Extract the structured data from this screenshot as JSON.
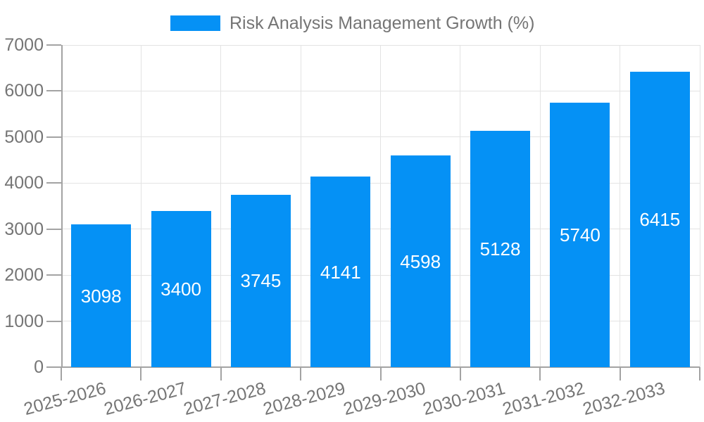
{
  "legend": {
    "label": "Risk Analysis Management Growth (%)",
    "swatch_color": "#0591f5"
  },
  "chart_data": {
    "type": "bar",
    "title": "Risk Analysis Management Growth (%)",
    "categories": [
      "2025-2026",
      "2026-2027",
      "2027-2028",
      "2028-2029",
      "2029-2030",
      "2030-2031",
      "2031-2032",
      "2032-2033"
    ],
    "series": [
      {
        "name": "Risk Analysis Management Growth (%)",
        "values": [
          3098,
          3400,
          3745,
          4141,
          4598,
          5128,
          5740,
          6415
        ]
      }
    ],
    "values": [
      3098,
      3400,
      3745,
      4141,
      4598,
      5128,
      5740,
      6415
    ],
    "value_labels_shown": true,
    "xlabel": "",
    "ylabel": "",
    "ylim": [
      0,
      7000
    ],
    "yticks": [
      0,
      1000,
      2000,
      3000,
      4000,
      5000,
      6000,
      7000
    ],
    "grid": true,
    "legend_position": "top-center",
    "xtick_rotation_deg": -15,
    "bar_color": "#0591f5",
    "value_label_color": "#ffffff",
    "text_color": "#757575",
    "axis_color": "#a3a3a3",
    "grid_color": "#e3e3e3",
    "background_color": "#ffffff"
  }
}
